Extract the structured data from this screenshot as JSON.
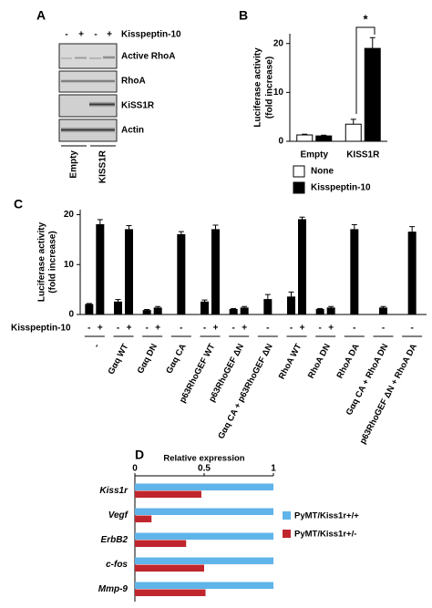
{
  "blot": {
    "panel": "A",
    "treatment": "Kisspeptin-10",
    "signs": [
      "-",
      "+",
      "-",
      "+"
    ],
    "rows": [
      "Active RhoA",
      "RhoA",
      "KiSS1R",
      "Actin"
    ],
    "lane_groups": [
      "Empty",
      "KISS1R"
    ]
  },
  "chart_data": [
    {
      "type": "bar",
      "panel": "B",
      "ylabel": [
        "Luciferase activity",
        "(fold increase)"
      ],
      "categories": [
        "Empty",
        "KISS1R"
      ],
      "series": [
        {
          "name": "None",
          "color": "#ffffff",
          "values": [
            1.3,
            3.5
          ],
          "errors": [
            0.15,
            1.0
          ]
        },
        {
          "name": "Kisspeptin-10",
          "color": "#000000",
          "values": [
            1.1,
            19
          ],
          "errors": [
            0.15,
            2.2
          ]
        }
      ],
      "ylim": [
        0,
        22
      ],
      "yticks": [
        0,
        10,
        20
      ],
      "annotations": [
        "*"
      ]
    },
    {
      "type": "bar",
      "panel": "C",
      "ylabel": [
        "Luciferase activity",
        "(fold increase)"
      ],
      "xlabel": "Kisspeptin-10",
      "categories": [
        "-",
        "Gαq WT",
        "Gαq DN",
        "Gαq CA",
        "p63RhoGEF WT",
        "p63RhoGEF ΔN",
        "Gαq CA + p63RhoGEF ΔN",
        "RhoA WT",
        "RhoA DN",
        "RhoA DA",
        "Gαq CA + RhoA DN",
        "p63RhoGEF ΔN + RhoA DA"
      ],
      "series": [
        {
          "name": "-",
          "color": "#000000",
          "values": [
            2,
            2.5,
            0.8,
            16,
            2.5,
            1,
            3,
            3.5,
            1,
            17,
            1.3,
            16.5
          ],
          "errors": [
            0.2,
            0.5,
            0.2,
            0.6,
            0.4,
            0.2,
            1,
            1,
            0.2,
            1,
            0.3,
            1.1
          ]
        },
        {
          "name": "+",
          "color": "#000000",
          "values": [
            18,
            17,
            1.3,
            null,
            17,
            1.3,
            null,
            19,
            1.3,
            null,
            null,
            null
          ],
          "errors": [
            1,
            0.8,
            0.3,
            null,
            0.9,
            0.3,
            null,
            0.5,
            0.3,
            null,
            null,
            null
          ]
        }
      ],
      "ylim": [
        0,
        21
      ],
      "yticks": [
        0,
        10,
        20
      ]
    },
    {
      "type": "barh",
      "panel": "D",
      "title": "Relative expression",
      "categories": [
        "Kiss1r",
        "Vegf",
        "ErbB2",
        "c-fos",
        "Mmp-9"
      ],
      "series": [
        {
          "name": "PyMT/Kiss1r+/+",
          "color": "#5fb4ea",
          "values": [
            1,
            1,
            1,
            1,
            1
          ]
        },
        {
          "name": "PyMT/Kiss1r+/-",
          "color": "#c0262d",
          "values": [
            0.48,
            0.12,
            0.37,
            0.5,
            0.51
          ]
        }
      ],
      "xlim": [
        0,
        1
      ],
      "xticks": [
        0,
        {
          "value": 0.5,
          "label": "0.5"
        },
        1
      ]
    }
  ]
}
